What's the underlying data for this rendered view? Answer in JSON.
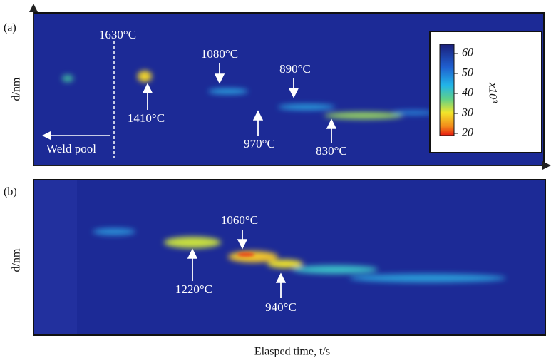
{
  "panels": [
    {
      "label": "(a)",
      "y_label": "d/nm",
      "annotations": [
        "1630°C",
        "1080°C",
        "890°C",
        "1410°C",
        "970°C",
        "830°C",
        "Weld pool"
      ]
    },
    {
      "label": "(b)",
      "y_label": "d/nm",
      "annotations": [
        "1060°C",
        "1220°C",
        "940°C"
      ]
    }
  ],
  "colorbar": {
    "ticks": [
      60,
      50,
      40,
      30,
      20
    ],
    "label": "x10³"
  },
  "x_label": "Elasped time, t/s"
}
